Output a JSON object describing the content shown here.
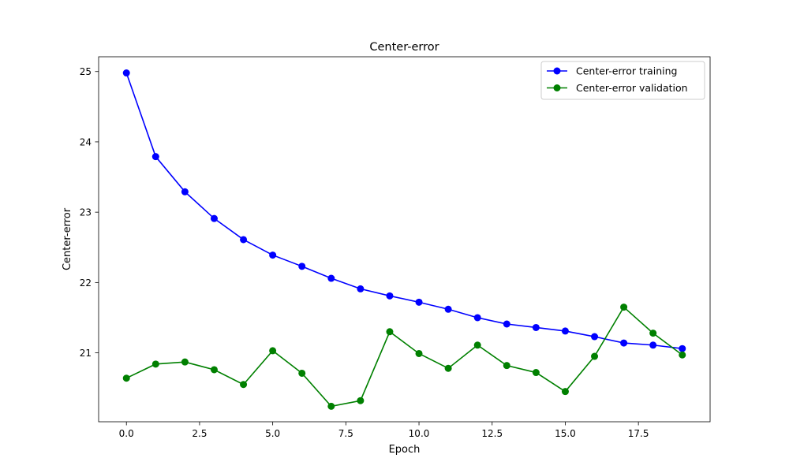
{
  "chart_data": {
    "type": "line",
    "title": "Center-error",
    "xlabel": "Epoch",
    "ylabel": "Center-error",
    "xlim": [
      -0.95,
      19.95
    ],
    "ylim": [
      20.02,
      25.21
    ],
    "xticks": [
      0.0,
      2.5,
      5.0,
      7.5,
      10.0,
      12.5,
      15.0,
      17.5
    ],
    "xtick_labels": [
      "0.0",
      "2.5",
      "5.0",
      "7.5",
      "10.0",
      "12.5",
      "15.0",
      "17.5"
    ],
    "yticks": [
      21,
      22,
      23,
      24,
      25
    ],
    "ytick_labels": [
      "21",
      "22",
      "23",
      "24",
      "25"
    ],
    "grid": false,
    "legend_position": "top-right",
    "x": [
      0,
      1,
      2,
      3,
      4,
      5,
      6,
      7,
      8,
      9,
      10,
      11,
      12,
      13,
      14,
      15,
      16,
      17,
      18,
      19
    ],
    "series": [
      {
        "name": "Center-error training",
        "color": "#0000ff",
        "values": [
          24.98,
          23.79,
          23.29,
          22.91,
          22.61,
          22.39,
          22.23,
          22.06,
          21.91,
          21.81,
          21.72,
          21.62,
          21.5,
          21.41,
          21.36,
          21.31,
          21.23,
          21.14,
          21.11,
          21.06
        ]
      },
      {
        "name": "Center-error validation",
        "color": "#008000",
        "values": [
          20.64,
          20.84,
          20.87,
          20.76,
          20.55,
          21.03,
          20.71,
          20.24,
          20.32,
          21.3,
          20.99,
          20.78,
          21.11,
          20.82,
          20.72,
          20.45,
          20.95,
          21.65,
          21.28,
          20.97
        ]
      }
    ]
  }
}
